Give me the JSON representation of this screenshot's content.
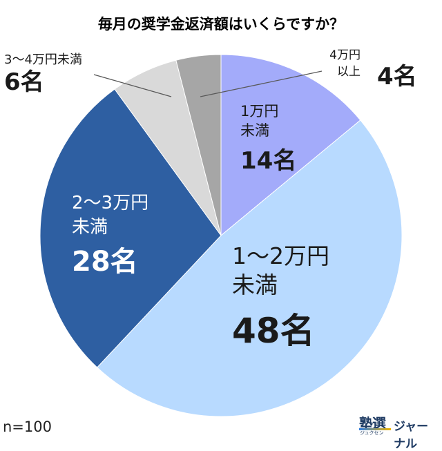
{
  "chart_data": {
    "type": "pie",
    "title": "毎月の奨学金返済額はいくらですか？",
    "total_label": "n=100",
    "slices": [
      {
        "name": "1万円未満",
        "value": 14,
        "count_label": "14名",
        "color": "#a3abfa",
        "text_color": "#1a1a1a",
        "lines": [
          "1万円",
          "未満"
        ]
      },
      {
        "name": "1〜2万円未満",
        "value": 48,
        "count_label": "48名",
        "color": "#b8daff",
        "text_color": "#1a1a1a",
        "lines": [
          "1〜2万円",
          "未満"
        ]
      },
      {
        "name": "2〜3万円未満",
        "value": 28,
        "count_label": "28名",
        "color": "#2e5fa2",
        "text_color": "#ffffff",
        "lines": [
          "2〜3万円",
          "未満"
        ]
      },
      {
        "name": "3〜4万円未満",
        "value": 6,
        "count_label": "6名",
        "color": "#d9d9d9",
        "text_color": "#1a1a1a",
        "lines": [
          "3〜4万円未満"
        ]
      },
      {
        "name": "4万円以上",
        "value": 4,
        "count_label": "4名",
        "color": "#a6a6a6",
        "text_color": "#1a1a1a",
        "lines": [
          "4万円",
          "以上"
        ]
      }
    ]
  },
  "brand": {
    "mark": "塾選",
    "kana": "ジュクセン",
    "word": "ジャーナル"
  }
}
